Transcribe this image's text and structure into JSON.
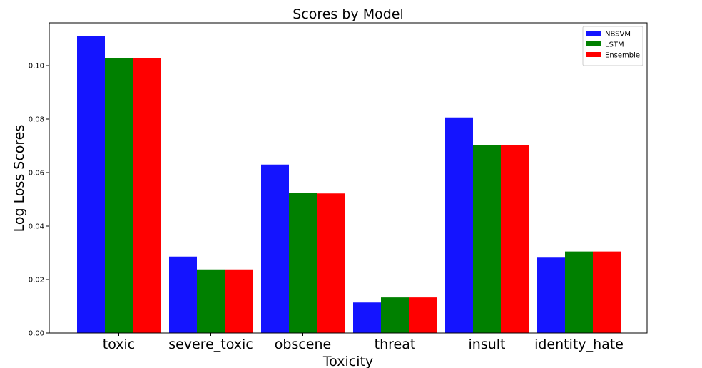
{
  "chart_data": {
    "type": "bar",
    "title": "Scores by Model",
    "xlabel": "Toxicity",
    "ylabel": "Log Loss Scores",
    "categories": [
      "toxic",
      "severe_toxic",
      "obscene",
      "threat",
      "insult",
      "identity_hate"
    ],
    "series": [
      {
        "name": "NBSVM",
        "color": "#1414ff",
        "values": [
          0.111,
          0.0286,
          0.063,
          0.0114,
          0.0806,
          0.0282
        ]
      },
      {
        "name": "LSTM",
        "color": "#008000",
        "values": [
          0.1028,
          0.0238,
          0.0524,
          0.0133,
          0.0704,
          0.0305
        ]
      },
      {
        "name": "Ensemble",
        "color": "#ff0000",
        "values": [
          0.1028,
          0.0238,
          0.0522,
          0.0133,
          0.0704,
          0.0305
        ]
      }
    ],
    "ylim": [
      0,
      0.116
    ],
    "yticks": [
      "0.00",
      "0.02",
      "0.04",
      "0.06",
      "0.08",
      "0.10"
    ],
    "legend_position": "top-right",
    "grid": false
  }
}
